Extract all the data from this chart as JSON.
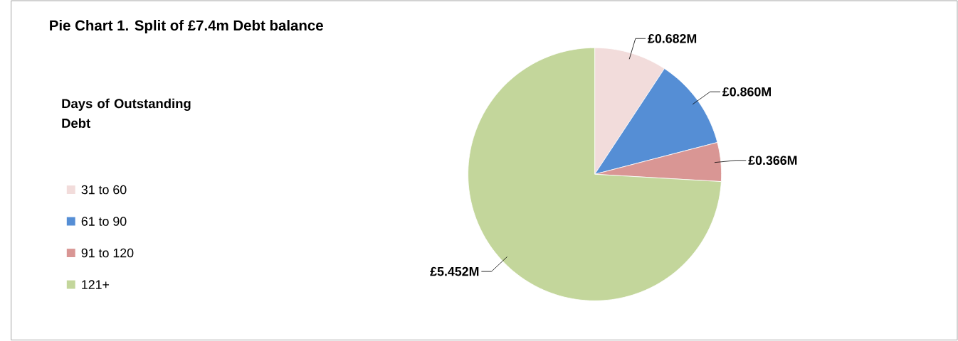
{
  "chart_data": {
    "type": "pie",
    "title": "Pie Chart 1. Split of £7.4m Debt balance",
    "legend_title": "Days of Outstanding  Debt",
    "categories": [
      "31 to 60",
      "61 to 90",
      "91 to 120",
      "121+"
    ],
    "values": [
      0.682,
      0.86,
      0.366,
      5.452
    ],
    "value_labels": [
      "£0.682M",
      "£0.860M",
      "£0.366M",
      "£5.452M"
    ],
    "colors": [
      "#f2dcdb",
      "#558ed5",
      "#d99694",
      "#c3d69b"
    ],
    "legend": "left"
  }
}
